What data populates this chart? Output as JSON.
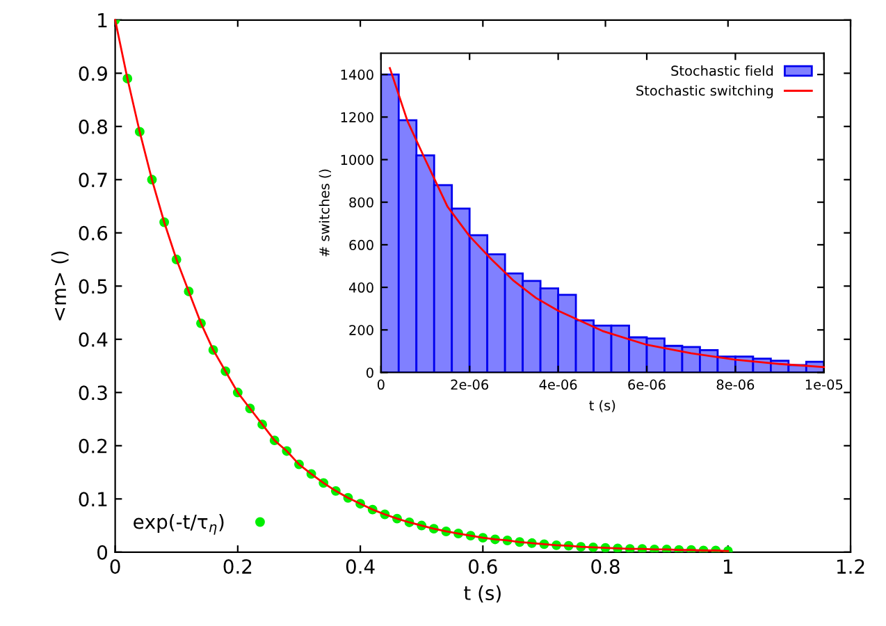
{
  "chart_data": [
    {
      "type": "line",
      "xlabel": "t (s)",
      "ylabel": "<m> ()",
      "xlim": [
        0,
        1.2
      ],
      "ylim": [
        0,
        1
      ],
      "xticks": [
        0,
        0.2,
        0.4,
        0.6,
        0.8,
        1,
        1.2
      ],
      "yticks": [
        0,
        0.1,
        0.2,
        0.3,
        0.4,
        0.5,
        0.6,
        0.7,
        0.8,
        0.9,
        1
      ],
      "grid": false,
      "legend": "bottom left",
      "x": [
        0,
        0.02,
        0.04,
        0.06,
        0.08,
        0.1,
        0.12,
        0.14,
        0.16,
        0.18,
        0.2,
        0.22,
        0.24,
        0.26,
        0.28,
        0.3,
        0.32,
        0.34,
        0.36,
        0.38,
        0.4,
        0.42,
        0.44,
        0.46,
        0.48,
        0.5,
        0.52,
        0.54,
        0.56,
        0.58,
        0.6,
        0.62,
        0.64,
        0.66,
        0.68,
        0.7,
        0.72,
        0.74,
        0.76,
        0.78,
        0.8,
        0.82,
        0.84,
        0.86,
        0.88,
        0.9,
        0.92,
        0.94,
        0.96,
        0.98,
        1
      ],
      "series": [
        {
          "color": "#ff0000",
          "marker": "none",
          "values": [
            1,
            0.89,
            0.79,
            0.7,
            0.62,
            0.55,
            0.49,
            0.43,
            0.38,
            0.34,
            0.3,
            0.27,
            0.24,
            0.21,
            0.19,
            0.165,
            0.147,
            0.13,
            0.115,
            0.102,
            0.091,
            0.08,
            0.071,
            0.063,
            0.056,
            0.05,
            0.044,
            0.039,
            0.035,
            0.031,
            0.027,
            0.024,
            0.022,
            0.019,
            0.017,
            0.015,
            0.013,
            0.012,
            0.01,
            0.009,
            0.008,
            0.007,
            0.006,
            0.006,
            0.005,
            0.005,
            0.004,
            0.004,
            0.003,
            0.003,
            0.002
          ]
        },
        {
          "type": "scatter",
          "name": "exp(-t/τ$_{η}$)",
          "color": "#00ee00",
          "marker": "circle",
          "values": [
            1,
            0.89,
            0.79,
            0.7,
            0.62,
            0.55,
            0.49,
            0.43,
            0.38,
            0.34,
            0.3,
            0.27,
            0.24,
            0.21,
            0.19,
            0.165,
            0.147,
            0.13,
            0.115,
            0.102,
            0.091,
            0.08,
            0.071,
            0.063,
            0.056,
            0.05,
            0.044,
            0.039,
            0.035,
            0.031,
            0.027,
            0.024,
            0.022,
            0.019,
            0.017,
            0.015,
            0.013,
            0.012,
            0.01,
            0.009,
            0.008,
            0.007,
            0.006,
            0.006,
            0.005,
            0.005,
            0.004,
            0.004,
            0.003,
            0.003,
            0.002
          ]
        }
      ]
    },
    {
      "type": "histogram",
      "xlabel": "t (s)",
      "ylabel": "# switches ()",
      "xlim": [
        0,
        1e-05
      ],
      "ylim": [
        0,
        1500
      ],
      "xticks": [
        0,
        {
          "value": 2e-06,
          "label": "2e-06"
        },
        {
          "value": 4e-06,
          "label": "4e-06"
        },
        {
          "value": 6e-06,
          "label": "6e-06"
        },
        {
          "value": 8e-06,
          "label": "8e-06"
        },
        {
          "value": 1e-05,
          "label": "1e-05"
        }
      ],
      "yticks": [
        0,
        200,
        400,
        600,
        800,
        1000,
        1200,
        1400
      ],
      "grid": false,
      "legend": "top right",
      "bins": [
        0,
        4e-07,
        8e-07,
        1.2e-06,
        1.6e-06,
        2e-06,
        2.4e-06,
        2.8e-06,
        3.2e-06,
        3.6e-06,
        4e-06,
        4.4e-06,
        4.8e-06,
        5.2e-06,
        5.6e-06,
        6e-06,
        6.4e-06,
        6.8e-06,
        7.2e-06,
        7.6e-06,
        8e-06,
        8.4e-06,
        8.8e-06,
        9.2e-06,
        9.6e-06,
        1e-05
      ],
      "series": [
        {
          "name": "Stochastic field",
          "color": "#8080ff",
          "values": [
            1400,
            1185,
            1020,
            880,
            770,
            645,
            555,
            465,
            430,
            395,
            365,
            245,
            220,
            220,
            165,
            160,
            125,
            120,
            105,
            75,
            75,
            65,
            55,
            35,
            50
          ]
        },
        {
          "type": "line",
          "name": "Stochastic switching",
          "color": "#ff0000",
          "x": [
            2e-07,
            6e-07,
            1e-06,
            1.5e-06,
            2e-06,
            2.5e-06,
            3e-06,
            3.5e-06,
            4e-06,
            5e-06,
            6e-06,
            7e-06,
            8e-06,
            9e-06,
            1e-05
          ],
          "values": [
            1430,
            1180,
            1000,
            780,
            640,
            530,
            430,
            350,
            290,
            195,
            130,
            90,
            60,
            40,
            25
          ]
        }
      ]
    }
  ]
}
